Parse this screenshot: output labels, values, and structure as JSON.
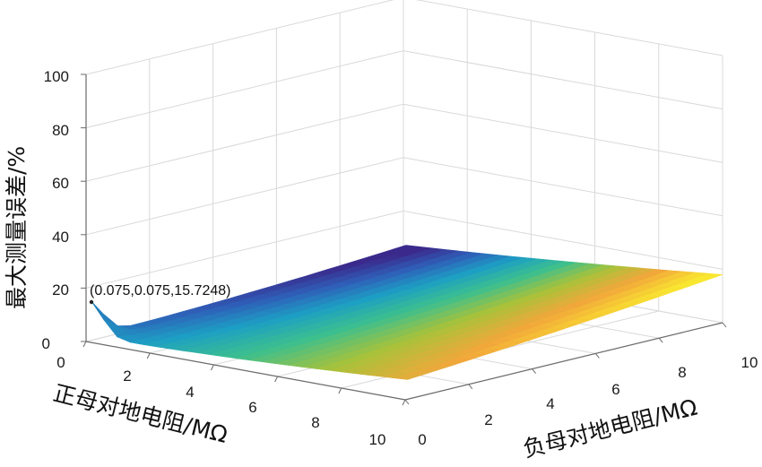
{
  "chart_data": {
    "type": "surface",
    "zlabel": "最大测量误差/%",
    "xlabel": "正母对地电阻/MΩ",
    "ylabel": "负母对地电阻/MΩ",
    "z_ticks": [
      "0",
      "20",
      "40",
      "60",
      "80",
      "100"
    ],
    "x_ticks": [
      "0",
      "2",
      "4",
      "6",
      "8",
      "10"
    ],
    "y_ticks": [
      "0",
      "2",
      "4",
      "6",
      "8",
      "10"
    ],
    "xlim": [
      0,
      10
    ],
    "ylim": [
      0,
      10
    ],
    "zlim": [
      0,
      100
    ],
    "grid": true,
    "colormap": [
      "#3b2a8c",
      "#2f5fb8",
      "#1d9fc4",
      "#3cbf8f",
      "#a8c23a",
      "#f2a73b",
      "#f9e630"
    ],
    "annotation": {
      "text": "(0.075,0.075,15.7248)",
      "x": 0.075,
      "y": 0.075,
      "z": 15.7248
    },
    "surface_samples": {
      "grid_values": [
        0.075,
        2,
        4,
        6,
        8,
        10
      ],
      "z_description_points": [
        {
          "x": 0.075,
          "y": 0.075,
          "z": 15.72
        },
        {
          "x": 0.075,
          "y": 10,
          "z": 6
        },
        {
          "x": 10,
          "y": 0.075,
          "z": 2
        },
        {
          "x": 10,
          "y": 10,
          "z": 18
        }
      ]
    }
  }
}
